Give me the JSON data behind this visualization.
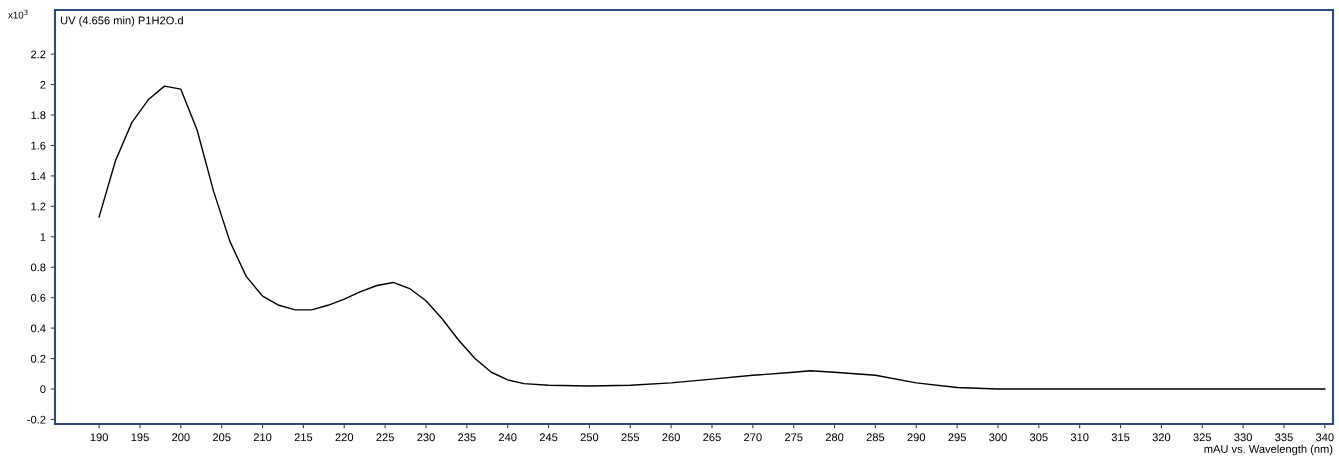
{
  "chart_data": {
    "type": "line",
    "title": "UV (4.656 min) P1H2O.d",
    "xlabel": "mAU vs. Wavelength (nm)",
    "ylabel": "x10$^{3}$",
    "x": [
      190,
      192,
      194,
      196,
      198,
      200,
      202,
      204,
      206,
      208,
      210,
      212,
      214,
      216,
      218,
      220,
      222,
      224,
      226,
      228,
      230,
      232,
      234,
      236,
      238,
      240,
      242,
      245,
      250,
      255,
      260,
      265,
      270,
      275,
      277,
      280,
      285,
      290,
      295,
      300,
      310,
      320,
      330,
      340
    ],
    "series": [
      {
        "color": "#000000",
        "values": [
          1.13,
          1.5,
          1.75,
          1.9,
          1.99,
          1.97,
          1.7,
          1.3,
          0.97,
          0.74,
          0.61,
          0.55,
          0.52,
          0.52,
          0.55,
          0.59,
          0.64,
          0.68,
          0.7,
          0.66,
          0.58,
          0.46,
          0.32,
          0.2,
          0.11,
          0.06,
          0.035,
          0.025,
          0.02,
          0.025,
          0.04,
          0.065,
          0.09,
          0.11,
          0.12,
          0.11,
          0.09,
          0.04,
          0.01,
          0.0,
          0.0,
          0.0,
          0.0,
          0.0
        ]
      }
    ],
    "xlim": [
      184.6,
      341
    ],
    "ylim": [
      -0.23,
      2.49
    ],
    "xticks": [
      190,
      195,
      200,
      205,
      210,
      215,
      220,
      225,
      230,
      235,
      240,
      245,
      250,
      255,
      260,
      265,
      270,
      275,
      280,
      285,
      290,
      295,
      300,
      305,
      310,
      315,
      320,
      325,
      330,
      335,
      340
    ],
    "yticks": [
      -0.2,
      0,
      0.2,
      0.4,
      0.6,
      0.8,
      1,
      1.2,
      1.4,
      1.6,
      1.8,
      2,
      2.2
    ],
    "grid": false,
    "legend": false,
    "marker": "none",
    "line_style": "solid"
  }
}
